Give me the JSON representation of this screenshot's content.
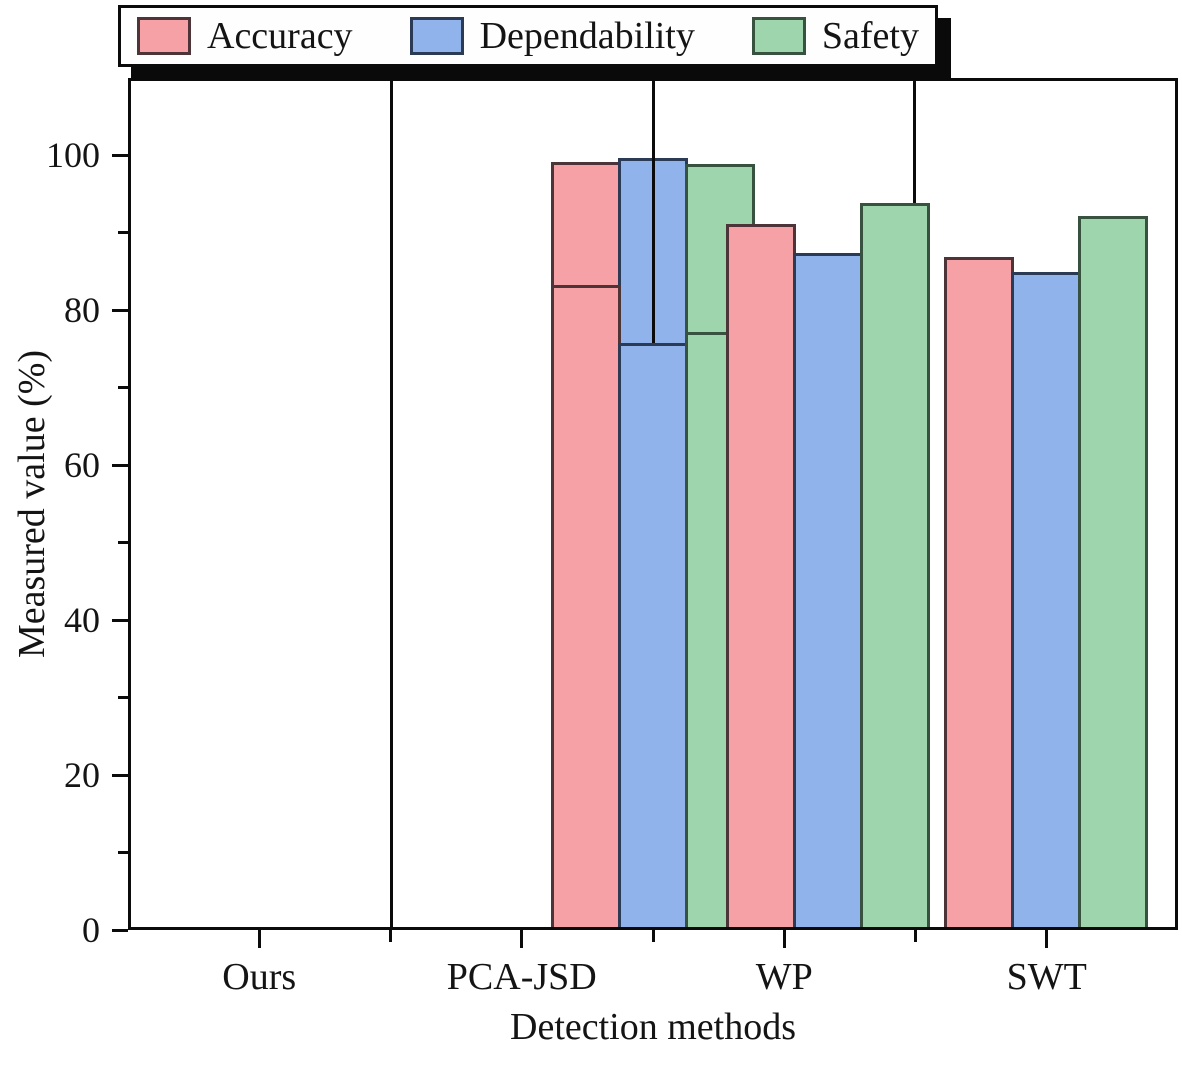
{
  "chart_data": {
    "type": "bar",
    "title": "",
    "xlabel": "Detection methods",
    "ylabel": "Measured value (%)",
    "categories": [
      "Ours",
      "PCA-JSD",
      "WP",
      "SWT"
    ],
    "series": [
      {
        "name": "Accuracy",
        "values": [
          99.5,
          83.5,
          91.4,
          87.1
        ],
        "fill": "#f5a1a6",
        "edge": "#4d3439"
      },
      {
        "name": "Dependability",
        "values": [
          100,
          76.0,
          87.6,
          85.2
        ],
        "fill": "#8fb3ea",
        "edge": "#2b3a55"
      },
      {
        "name": "Safety",
        "values": [
          99.2,
          77.4,
          94.2,
          92.5
        ],
        "fill": "#9fd5ad",
        "edge": "#37523f"
      }
    ],
    "ylim": [
      0,
      110
    ],
    "yticks_major": [
      0,
      20,
      40,
      60,
      80,
      100
    ],
    "yticks_minor": [
      10,
      30,
      50,
      70,
      90
    ],
    "grid": false,
    "legend_position": "top",
    "axis_color": "#0b0b0b"
  }
}
